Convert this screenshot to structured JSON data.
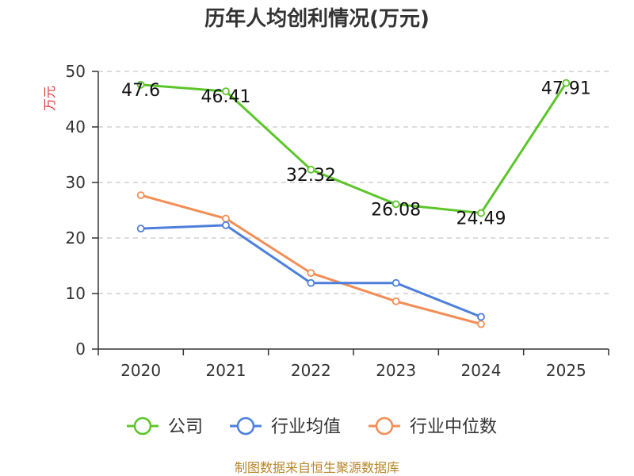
{
  "chart_data": {
    "type": "line",
    "title": "历年人均创利情况(万元)",
    "ylabel": "万元",
    "xlabel": "",
    "categories": [
      "2020",
      "2021",
      "2022",
      "2023",
      "2024",
      "2025"
    ],
    "ylim": [
      0,
      50
    ],
    "yticks": [
      0,
      10,
      20,
      30,
      40,
      50
    ],
    "grid": true,
    "legend_position": "bottom",
    "series": [
      {
        "name": "公司",
        "color": "#5cc52a",
        "values": [
          47.6,
          46.41,
          32.32,
          26.08,
          24.49,
          47.91
        ],
        "labels": [
          "47.6",
          "46.41",
          "32.32",
          "26.08",
          "24.49",
          "47.91"
        ]
      },
      {
        "name": "行业均值",
        "color": "#4d7fdb",
        "values": [
          21.7,
          22.3,
          11.9,
          11.9,
          5.8,
          null
        ]
      },
      {
        "name": "行业中位数",
        "color": "#f28e55",
        "values": [
          27.7,
          23.5,
          13.7,
          8.6,
          4.5,
          null
        ]
      }
    ],
    "source": "制图数据来自恒生聚源数据库"
  }
}
